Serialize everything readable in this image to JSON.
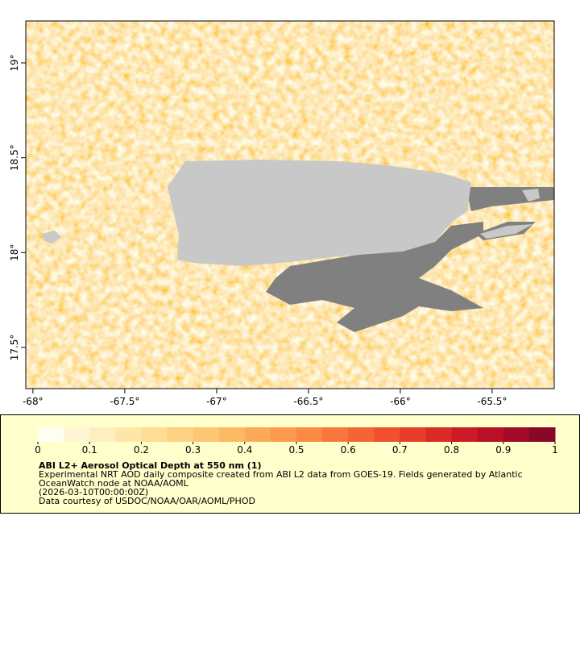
{
  "map": {
    "xlim": [
      -68.039,
      -65.162
    ],
    "ylim": [
      17.283,
      19.221
    ],
    "xticks": [
      {
        "value": -68,
        "label": "-68°"
      },
      {
        "value": -67.5,
        "label": "-67.5°"
      },
      {
        "value": -67,
        "label": "-67°"
      },
      {
        "value": -66.5,
        "label": "-66.5°"
      },
      {
        "value": -66,
        "label": "-66°"
      },
      {
        "value": -65.5,
        "label": "-65.5°"
      }
    ],
    "yticks": [
      {
        "value": 17.5,
        "label": "17.5°"
      },
      {
        "value": 18,
        "label": "18°"
      },
      {
        "value": 18.5,
        "label": "18.5°"
      },
      {
        "value": 19,
        "label": "19°"
      }
    ]
  },
  "colorbar": {
    "range": [
      0,
      1
    ],
    "ticks": [
      0,
      0.1,
      0.2,
      0.3,
      0.4,
      0.5,
      0.6,
      0.7,
      0.8,
      0.9,
      1
    ],
    "colors": [
      "#fffef2",
      "#fff6d6",
      "#ffefc0",
      "#fee6a8",
      "#fedd94",
      "#fdd282",
      "#fdc672",
      "#fdb864",
      "#fca958",
      "#fc9a4e",
      "#fb8a44",
      "#f9773c",
      "#f56435",
      "#f0502f",
      "#e73d2a",
      "#db2b27",
      "#cc1b27",
      "#b81127",
      "#a10b28",
      "#870829"
    ]
  },
  "legend": {
    "title": "ABI L2+ Aerosol Optical Depth at 550 nm (1)",
    "lines": [
      "Experimental NRT AOD daily composite created from ABI L2 data from GOES-19. Fields generated by Atlantic",
      "OceanWatch node at NOAA/AOML",
      "(2026-03-10T00:00:00Z)",
      "Data courtesy of USDOC/NOAA/OAR/AOML/PHOD"
    ]
  }
}
